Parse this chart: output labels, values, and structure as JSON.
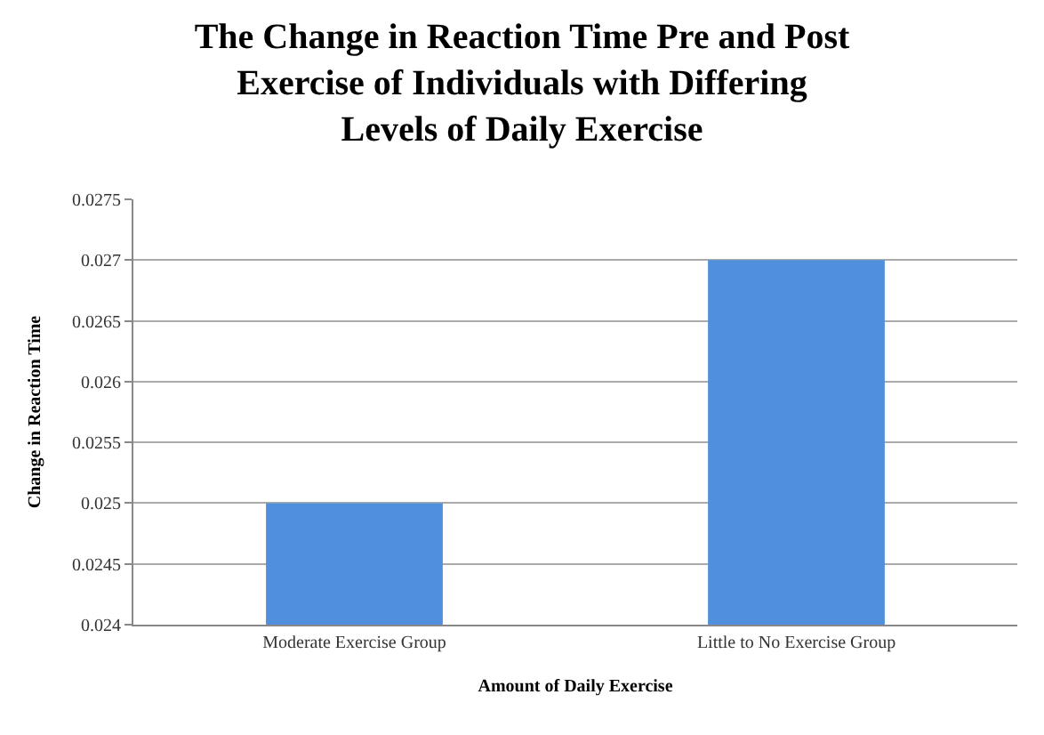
{
  "chart_data": {
    "type": "bar",
    "title": "The Change in Reaction Time Pre and Post\nExercise of Individuals with Differing\nLevels of Daily Exercise",
    "xlabel": "Amount of Daily Exercise",
    "ylabel": "Change in Reaction Time",
    "categories": [
      "Moderate Exercise Group",
      "Little to No Exercise Group"
    ],
    "values": [
      0.025,
      0.027
    ],
    "color": "#4f8fdc",
    "ylim": [
      0.024,
      0.0275
    ],
    "yticks": [
      0.024,
      0.0245,
      0.025,
      0.0255,
      0.026,
      0.0265,
      0.027,
      0.0275
    ],
    "grid": "y"
  }
}
